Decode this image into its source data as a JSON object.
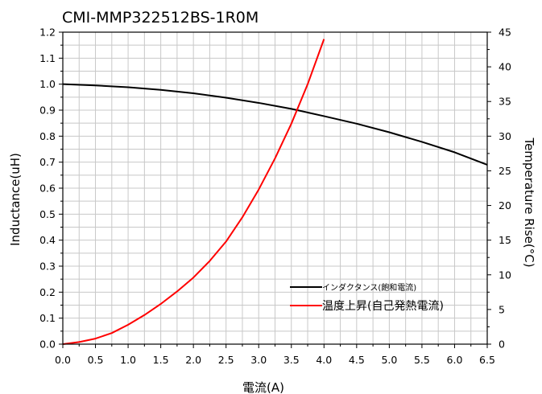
{
  "chart_data": {
    "type": "line",
    "title": "CMI-MMP322512BS-1R0M",
    "xlabel": "電流(A)",
    "ylabel_left": "Inductance(uH)",
    "ylabel_right": "Temperature Rise(°C)",
    "xlim": [
      0,
      6.5
    ],
    "ylim_left": [
      0,
      1.2
    ],
    "ylim_right": [
      0,
      45
    ],
    "x_ticks": [
      "0.0",
      "0.5",
      "1.0",
      "1.5",
      "2.0",
      "2.5",
      "3.0",
      "3.5",
      "4.0",
      "4.5",
      "5.0",
      "5.5",
      "6.0",
      "6.5"
    ],
    "y_left_ticks": [
      "0.0",
      "0.1",
      "0.2",
      "0.3",
      "0.4",
      "0.5",
      "0.6",
      "0.7",
      "0.8",
      "0.9",
      "1.0",
      "1.1",
      "1.2"
    ],
    "y_right_ticks": [
      "0",
      "5",
      "10",
      "15",
      "20",
      "25",
      "30",
      "35",
      "40",
      "45"
    ],
    "grid": true,
    "legend_position": "bottom-right",
    "series": [
      {
        "name": "インダクタンス(飽和電流)",
        "axis": "left",
        "color": "#000000",
        "x": [
          0,
          0.5,
          1.0,
          1.5,
          2.0,
          2.5,
          3.0,
          3.5,
          4.0,
          4.5,
          5.0,
          5.5,
          6.0,
          6.5
        ],
        "y": [
          1.0,
          0.995,
          0.988,
          0.978,
          0.965,
          0.948,
          0.928,
          0.905,
          0.877,
          0.848,
          0.815,
          0.778,
          0.738,
          0.69
        ]
      },
      {
        "name": "温度上昇(自己発熱電流)",
        "axis": "right",
        "color": "#ff0000",
        "x": [
          0,
          0.25,
          0.5,
          0.75,
          1.0,
          1.25,
          1.5,
          1.75,
          2.0,
          2.25,
          2.5,
          2.75,
          3.0,
          3.25,
          3.5,
          3.75,
          4.0
        ],
        "y": [
          0,
          0.3,
          0.8,
          1.6,
          2.8,
          4.2,
          5.8,
          7.6,
          9.6,
          12.0,
          14.8,
          18.3,
          22.3,
          26.8,
          31.8,
          37.5,
          44.0
        ]
      }
    ]
  }
}
